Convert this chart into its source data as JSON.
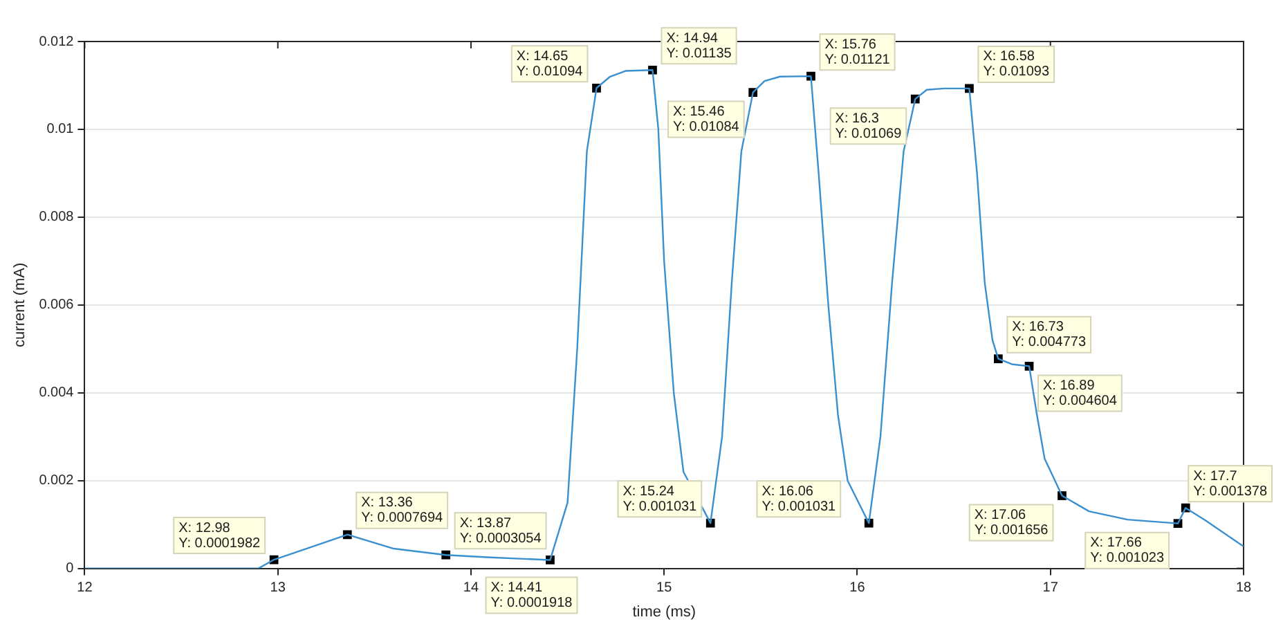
{
  "chart_data": {
    "type": "line",
    "xlabel": "time (ms)",
    "ylabel": "current (mA)",
    "xlim": [
      12,
      18
    ],
    "ylim": [
      0,
      0.012
    ],
    "xticks": [
      12,
      13,
      14,
      15,
      16,
      17,
      18
    ],
    "yticks": [
      0,
      0.002,
      0.004,
      0.006,
      0.008,
      0.01,
      0.012
    ],
    "grid": "y",
    "legend": false,
    "series": [
      {
        "color": "#3a8fcf",
        "marker": "none",
        "line_style": "solid",
        "x": [
          12,
          12.9,
          12.98,
          13.36,
          13.6,
          13.87,
          14.1,
          14.41,
          14.5,
          14.55,
          14.6,
          14.65,
          14.72,
          14.8,
          14.94,
          14.97,
          15.0,
          15.05,
          15.1,
          15.24,
          15.3,
          15.35,
          15.4,
          15.46,
          15.52,
          15.6,
          15.76,
          15.8,
          15.85,
          15.9,
          15.95,
          16.06,
          16.12,
          16.18,
          16.24,
          16.3,
          16.36,
          16.45,
          16.58,
          16.62,
          16.66,
          16.7,
          16.73,
          16.8,
          16.89,
          16.93,
          16.97,
          17.06,
          17.2,
          17.4,
          17.66,
          17.7,
          17.8,
          18
        ],
        "values": [
          0,
          0,
          0.0001982,
          0.0007694,
          0.00045,
          0.0003054,
          0.00025,
          0.0001918,
          0.0015,
          0.005,
          0.0095,
          0.01094,
          0.0112,
          0.01133,
          0.01135,
          0.01,
          0.007,
          0.004,
          0.0022,
          0.001031,
          0.003,
          0.0065,
          0.0095,
          0.01084,
          0.0111,
          0.0112,
          0.01121,
          0.009,
          0.006,
          0.0035,
          0.002,
          0.001031,
          0.003,
          0.0065,
          0.0095,
          0.01069,
          0.0109,
          0.01093,
          0.01093,
          0.009,
          0.0065,
          0.0052,
          0.004773,
          0.00465,
          0.004604,
          0.0035,
          0.0025,
          0.001656,
          0.0013,
          0.00111,
          0.001023,
          0.001378,
          0.0011,
          0.0005
        ]
      },
      {
        "type": "scatter",
        "color": "#000000",
        "marker": "square",
        "x": [
          12.98,
          13.36,
          13.87,
          14.41,
          14.65,
          14.94,
          15.24,
          15.46,
          15.76,
          16.06,
          16.3,
          16.58,
          16.73,
          16.89,
          17.06,
          17.66,
          17.7
        ],
        "values": [
          0.0001982,
          0.0007694,
          0.0003054,
          0.0001918,
          0.01094,
          0.01135,
          0.001031,
          0.01084,
          0.01121,
          0.001031,
          0.01069,
          0.01093,
          0.004773,
          0.004604,
          0.001656,
          0.001023,
          0.001378
        ]
      }
    ],
    "annotations": [
      {
        "text": "X: 12.98\nY: 0.0001982",
        "x": 12.98,
        "y": 0.0001982
      },
      {
        "text": "X: 13.36\nY: 0.0007694",
        "x": 13.36,
        "y": 0.0007694
      },
      {
        "text": "X: 13.87\nY: 0.0003054",
        "x": 13.87,
        "y": 0.0003054
      },
      {
        "text": "X: 14.41\nY: 0.0001918",
        "x": 14.41,
        "y": 0.0001918
      },
      {
        "text": "X: 14.65\nY: 0.01094",
        "x": 14.65,
        "y": 0.01094
      },
      {
        "text": "X: 14.94\nY: 0.01135",
        "x": 14.94,
        "y": 0.01135
      },
      {
        "text": "X: 15.24\nY: 0.001031",
        "x": 15.24,
        "y": 0.001031
      },
      {
        "text": "X: 15.46\nY: 0.01084",
        "x": 15.46,
        "y": 0.01084
      },
      {
        "text": "X: 15.76\nY: 0.01121",
        "x": 15.76,
        "y": 0.01121
      },
      {
        "text": "X: 16.06\nY: 0.001031",
        "x": 16.06,
        "y": 0.001031
      },
      {
        "text": "X: 16.3\nY: 0.01069",
        "x": 16.3,
        "y": 0.01069
      },
      {
        "text": "X: 16.58\nY: 0.01093",
        "x": 16.58,
        "y": 0.01093
      },
      {
        "text": "X: 16.73\nY: 0.004773",
        "x": 16.73,
        "y": 0.004773
      },
      {
        "text": "X: 16.89\nY: 0.004604",
        "x": 16.89,
        "y": 0.004604
      },
      {
        "text": "X: 17.06\nY: 0.001656",
        "x": 17.06,
        "y": 0.001656
      },
      {
        "text": "X: 17.66\nY: 0.001023",
        "x": 17.66,
        "y": 0.001023
      },
      {
        "text": "X: 17.7\nY: 0.001378",
        "x": 17.7,
        "y": 0.001378
      }
    ]
  }
}
